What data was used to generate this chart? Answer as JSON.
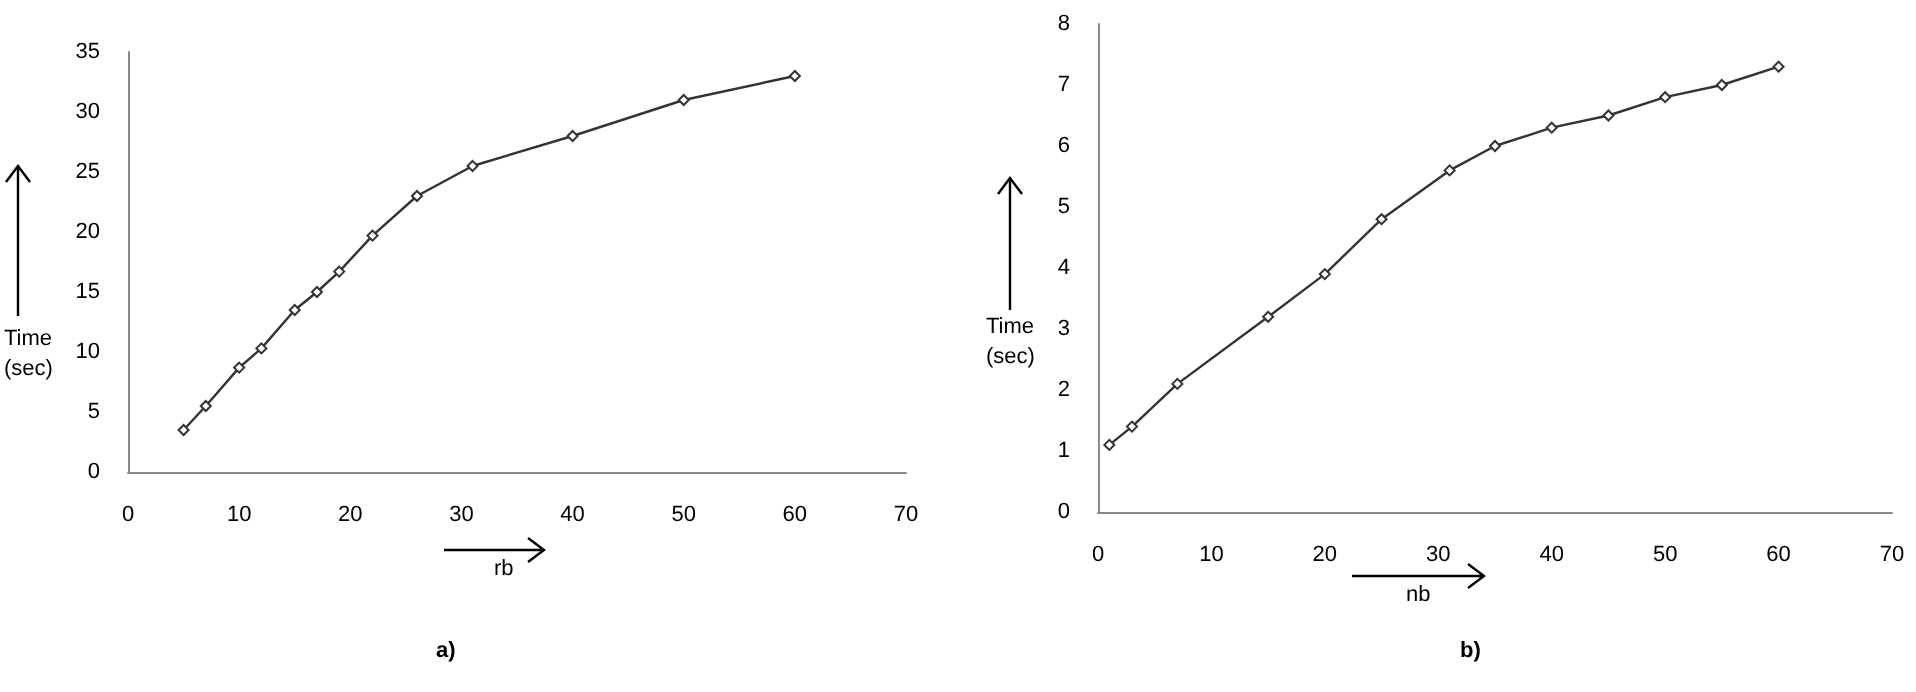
{
  "chart_data": [
    {
      "type": "line",
      "xlabel": "rb",
      "ylabel": "Time (sec)",
      "annotations": [
        "a)"
      ],
      "marker": "diamond",
      "line_style": "solid",
      "grid": false,
      "series": [
        {
          "color": "#333333",
          "x": [
            5,
            7,
            10,
            12,
            15,
            17,
            19,
            22,
            26,
            31,
            40,
            50,
            60
          ],
          "values": [
            3.5,
            5.5,
            8.7,
            10.3,
            13.5,
            15,
            16.7,
            19.7,
            23,
            25.5,
            28,
            31,
            33
          ]
        }
      ],
      "xlim": [
        0,
        70
      ],
      "xticks": [
        0,
        10,
        20,
        30,
        40,
        50,
        60,
        70
      ],
      "ylim": [
        0,
        35
      ],
      "yticks": [
        0,
        5,
        10,
        15,
        20,
        25,
        30,
        35
      ]
    },
    {
      "type": "line",
      "xlabel": "nb",
      "ylabel": "Time (sec)",
      "annotations": [
        "b)"
      ],
      "marker": "diamond",
      "line_style": "solid",
      "grid": false,
      "series": [
        {
          "color": "#333333",
          "x": [
            1,
            3,
            7,
            15,
            20,
            25,
            31,
            35,
            40,
            45,
            50,
            55,
            60
          ],
          "values": [
            1.1,
            1.4,
            2.1,
            3.2,
            3.9,
            4.8,
            5.6,
            6,
            6.3,
            6.5,
            6.8,
            7,
            7.3
          ]
        }
      ],
      "xlim": [
        0,
        70
      ],
      "xticks": [
        0,
        10,
        20,
        30,
        40,
        50,
        60,
        70
      ],
      "ylim": [
        0,
        8
      ],
      "yticks": [
        0,
        1,
        2,
        3,
        4,
        5,
        6,
        7,
        8
      ]
    }
  ]
}
